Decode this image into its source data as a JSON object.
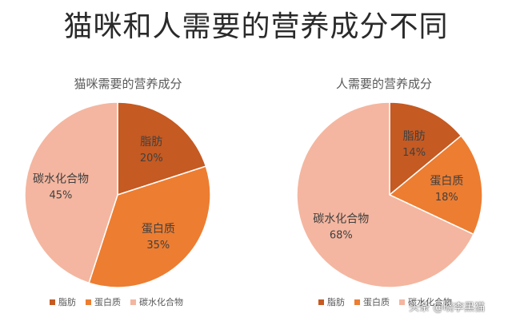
{
  "title": "猫咪和人需要的营养成分不同",
  "colors": {
    "fat": "#c55a22",
    "protein": "#ed7d31",
    "carb": "#f4b6a0"
  },
  "chart_data": [
    {
      "type": "pie",
      "title": "猫咪需要的营养成分",
      "categories": [
        "脂肪",
        "蛋白质",
        "碳水化合物"
      ],
      "values": [
        20,
        35,
        45
      ],
      "value_labels": [
        "20%",
        "35%",
        "45%"
      ],
      "legend_position": "bottom"
    },
    {
      "type": "pie",
      "title": "人需要的营养成分",
      "categories": [
        "脂肪",
        "蛋白质",
        "碳水化合物"
      ],
      "values": [
        14,
        18,
        68
      ],
      "value_labels": [
        "14%",
        "18%",
        "68%"
      ],
      "legend_position": "bottom"
    }
  ],
  "watermark": {
    "text": "头条 @晓李黑猫"
  }
}
